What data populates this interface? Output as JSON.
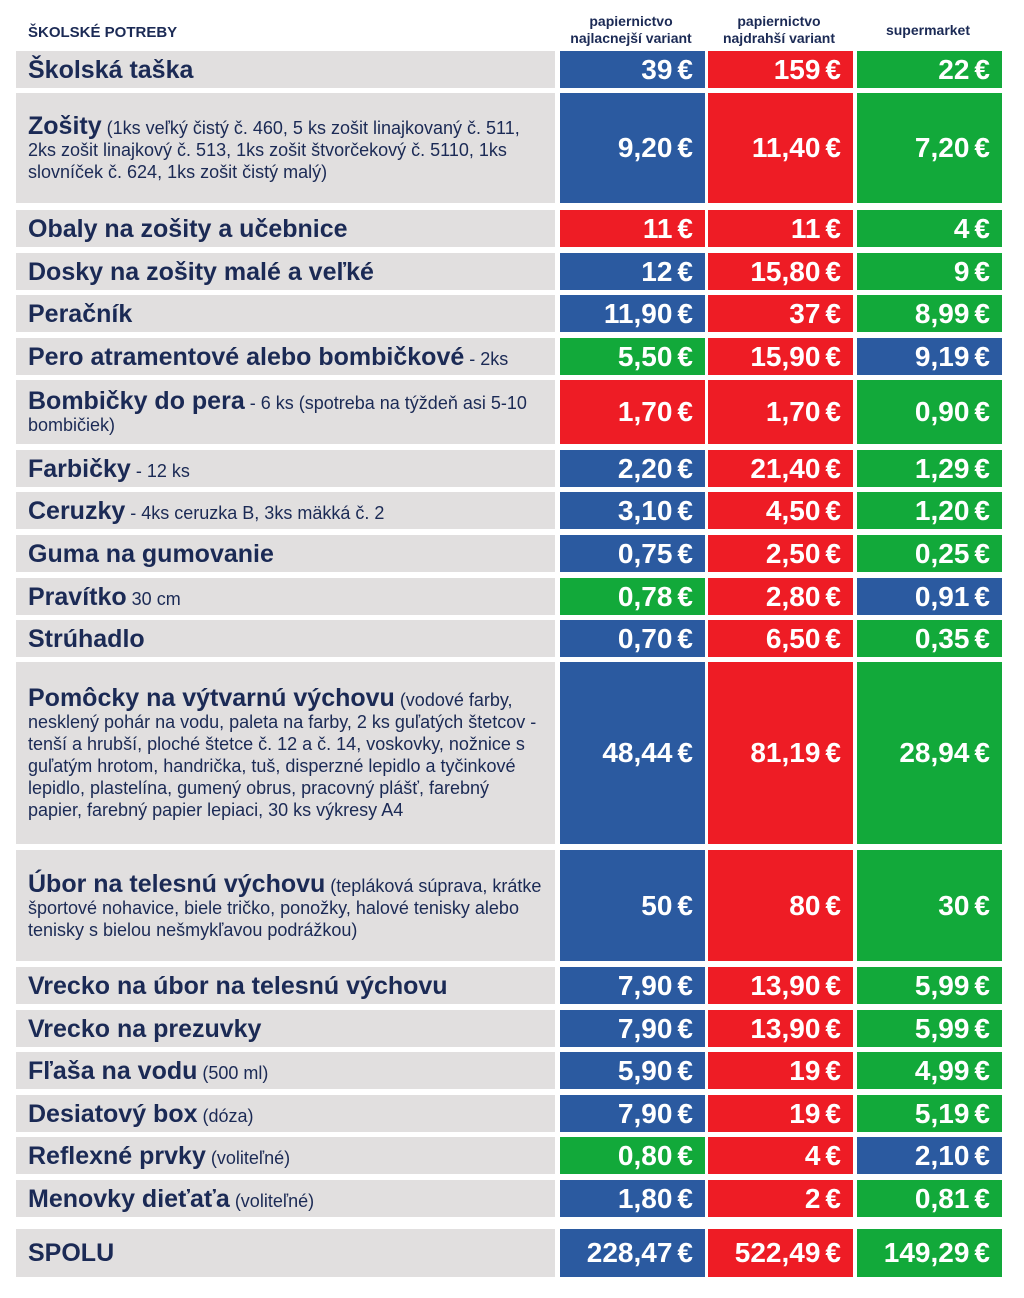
{
  "chart_data": {
    "type": "table",
    "title": "ŠKOLSKÉ POTREBY",
    "columns": [
      "papiernictvo\nnajlacnejší variant",
      "papiernictvo\nnajdrahší variant",
      "supermarket"
    ],
    "currency": "€",
    "colors": {
      "blue": "#2b5aa0",
      "red": "#ee1c25",
      "green": "#12a93a",
      "label_bg": "#e1dfdf",
      "text": "#1b2a55"
    },
    "rows": [
      {
        "name": "Školská taška",
        "detail": "",
        "values": [
          "39",
          "159",
          "22"
        ],
        "colors": [
          "blue",
          "red",
          "green"
        ]
      },
      {
        "name": "Zošity",
        "detail": " (1ks veľký čistý č. 460, 5 ks zošit linajkovaný č. 511, 2ks zošit linajkový č. 513, 1ks zošit štvorčekový č. 5110, 1ks slovníček č. 624, 1ks zošit čistý malý)",
        "values": [
          "9,20",
          "11,40",
          "7,20"
        ],
        "colors": [
          "blue",
          "red",
          "green"
        ]
      },
      {
        "name": "Obaly na zošity a učebnice",
        "detail": "",
        "values": [
          "11",
          "11",
          "4"
        ],
        "colors": [
          "red",
          "red",
          "green"
        ]
      },
      {
        "name": "Dosky na zošity malé a veľké",
        "detail": "",
        "values": [
          "12",
          "15,80",
          "9"
        ],
        "colors": [
          "blue",
          "red",
          "green"
        ]
      },
      {
        "name": "Peračník",
        "detail": "",
        "values": [
          "11,90",
          "37",
          "8,99"
        ],
        "colors": [
          "blue",
          "red",
          "green"
        ]
      },
      {
        "name": "Pero atramentové alebo bombičkové",
        "detail": " - 2ks",
        "values": [
          "5,50",
          "15,90",
          "9,19"
        ],
        "colors": [
          "green",
          "red",
          "blue"
        ]
      },
      {
        "name": "Bombičky do pera",
        "detail": " - 6 ks (spotreba na týždeň asi 5-10 bombičiek)",
        "values": [
          "1,70",
          "1,70",
          "0,90"
        ],
        "colors": [
          "red",
          "red",
          "green"
        ]
      },
      {
        "name": "Farbičky",
        "detail": " - 12 ks",
        "values": [
          "2,20",
          "21,40",
          "1,29"
        ],
        "colors": [
          "blue",
          "red",
          "green"
        ]
      },
      {
        "name": "Ceruzky",
        "detail": " - 4ks ceruzka B, 3ks mäkká č. 2",
        "values": [
          "3,10",
          "4,50",
          "1,20"
        ],
        "colors": [
          "blue",
          "red",
          "green"
        ]
      },
      {
        "name": "Guma na gumovanie",
        "detail": "",
        "values": [
          "0,75",
          "2,50",
          "0,25"
        ],
        "colors": [
          "blue",
          "red",
          "green"
        ]
      },
      {
        "name": "Pravítko",
        "detail": " 30 cm",
        "values": [
          "0,78",
          "2,80",
          "0,91"
        ],
        "colors": [
          "green",
          "red",
          "blue"
        ]
      },
      {
        "name": "Strúhadlo",
        "detail": "",
        "values": [
          "0,70",
          "6,50",
          "0,35"
        ],
        "colors": [
          "blue",
          "red",
          "green"
        ]
      },
      {
        "name": "Pomôcky na výtvarnú výchovu",
        "detail": " (vodové farby, nesklený pohár na vodu, paleta na farby, 2 ks guľatých štetcov - tenší a hrubší, ploché štetce č. 12 a č. 14, voskovky, nožnice s guľatým hrotom, handrička, tuš, disperzné lepidlo a tyčinkové lepidlo, plastelína, gumený obrus, pracovný plášť, farebný papier, farebný papier lepiaci, 30 ks výkresy A4",
        "values": [
          "48,44",
          "81,19",
          "28,94"
        ],
        "colors": [
          "blue",
          "red",
          "green"
        ]
      },
      {
        "name": "Úbor na telesnú výchovu",
        "detail": " (tepláková súprava, krátke športové nohavice, biele tričko, ponožky, halové tenisky alebo tenisky s bielou nešmykľavou podrážkou)",
        "values": [
          "50",
          "80",
          "30"
        ],
        "colors": [
          "blue",
          "red",
          "green"
        ]
      },
      {
        "name": "Vrecko na úbor na telesnú výchovu",
        "detail": "",
        "values": [
          "7,90",
          "13,90",
          "5,99"
        ],
        "colors": [
          "blue",
          "red",
          "green"
        ]
      },
      {
        "name": "Vrecko na prezuvky",
        "detail": "",
        "values": [
          "7,90",
          "13,90",
          "5,99"
        ],
        "colors": [
          "blue",
          "red",
          "green"
        ]
      },
      {
        "name": "Fľaša na vodu",
        "detail": " (500 ml)",
        "values": [
          "5,90",
          "19",
          "4,99"
        ],
        "colors": [
          "blue",
          "red",
          "green"
        ]
      },
      {
        "name": "Desiatový box",
        "detail": " (dóza)",
        "values": [
          "7,90",
          "19",
          "5,19"
        ],
        "colors": [
          "blue",
          "red",
          "green"
        ]
      },
      {
        "name": "Reflexné prvky",
        "detail": " (voliteľné)",
        "values": [
          "0,80",
          "4",
          "2,10"
        ],
        "colors": [
          "green",
          "red",
          "blue"
        ]
      },
      {
        "name": "Menovky dieťaťa",
        "detail": " (voliteľné)",
        "values": [
          "1,80",
          "2",
          "0,81"
        ],
        "colors": [
          "blue",
          "red",
          "green"
        ]
      }
    ],
    "total": {
      "name": "SPOLU",
      "values": [
        "228,47",
        "522,49",
        "149,29"
      ],
      "colors": [
        "blue",
        "red",
        "green"
      ]
    }
  }
}
